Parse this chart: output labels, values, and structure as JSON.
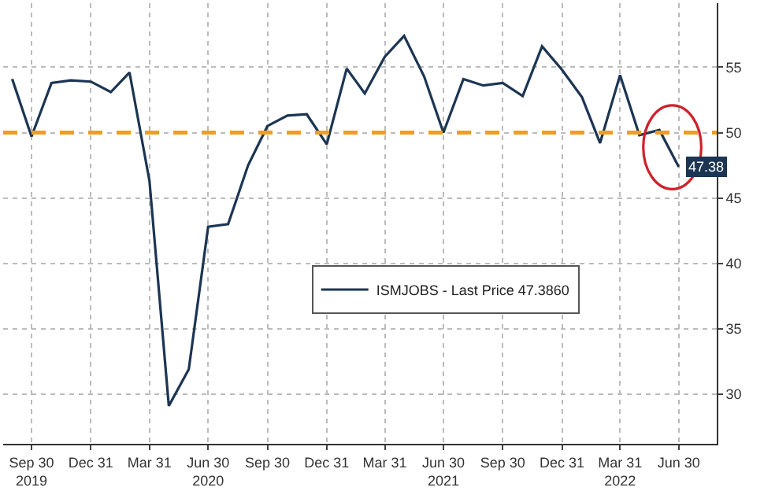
{
  "chart_data": {
    "type": "line",
    "x": [
      "2019-08-31",
      "2019-09-30",
      "2019-10-31",
      "2019-11-30",
      "2019-12-31",
      "2020-01-31",
      "2020-02-29",
      "2020-03-31",
      "2020-04-30",
      "2020-05-31",
      "2020-06-30",
      "2020-07-31",
      "2020-08-31",
      "2020-09-30",
      "2020-10-31",
      "2020-11-30",
      "2020-12-31",
      "2021-01-31",
      "2021-02-28",
      "2021-03-31",
      "2021-04-30",
      "2021-05-31",
      "2021-06-30",
      "2021-07-31",
      "2021-08-31",
      "2021-09-30",
      "2021-10-31",
      "2021-11-30",
      "2021-12-31",
      "2022-01-31",
      "2022-02-28",
      "2022-03-31",
      "2022-04-30",
      "2022-05-31",
      "2022-06-30"
    ],
    "series": [
      {
        "name": "ISMJOBS - Last Price 47.3860",
        "color": "#1c3553",
        "values": [
          54.1,
          49.7,
          53.8,
          54.0,
          53.9,
          53.1,
          54.6,
          46.3,
          29.1,
          31.9,
          42.8,
          43.0,
          47.5,
          50.5,
          51.3,
          51.4,
          49.1,
          54.9,
          53.0,
          55.8,
          57.4,
          54.3,
          50.0,
          54.1,
          53.6,
          53.8,
          52.8,
          56.6,
          54.8,
          52.7,
          49.2,
          54.4,
          49.8,
          50.2,
          47.38
        ],
        "value_labels": [
          null,
          null,
          null,
          null,
          null,
          null,
          null,
          null,
          null,
          null,
          null,
          null,
          null,
          null,
          null,
          null,
          null,
          null,
          null,
          null,
          null,
          null,
          null,
          null,
          null,
          null,
          null,
          null,
          null,
          null,
          null,
          null,
          null,
          null,
          "47.38"
        ]
      }
    ],
    "xlim": [
      "2019-08-17",
      "2022-08-28"
    ],
    "xticks": [
      {
        "value": "2019-09-30",
        "label": "Sep 30\n2019"
      },
      {
        "value": "2019-12-31",
        "label": "Dec 31"
      },
      {
        "value": "2020-03-31",
        "label": "Mar 31"
      },
      {
        "value": "2020-06-30",
        "label": "Jun 30\n2020"
      },
      {
        "value": "2020-09-30",
        "label": "Sep 30"
      },
      {
        "value": "2020-12-31",
        "label": "Dec 31"
      },
      {
        "value": "2021-03-31",
        "label": "Mar 31"
      },
      {
        "value": "2021-06-30",
        "label": "Jun 30\n2021"
      },
      {
        "value": "2021-09-30",
        "label": "Sep 30"
      },
      {
        "value": "2021-12-31",
        "label": "Dec 31"
      },
      {
        "value": "2022-03-31",
        "label": "Mar 31\n2022"
      },
      {
        "value": "2022-06-30",
        "label": "Jun 30"
      }
    ],
    "ylim": [
      26.2,
      59.9
    ],
    "yticks": [
      30,
      35,
      40,
      45,
      50,
      55
    ],
    "ref_lines": [
      {
        "axis": "y",
        "value": 50,
        "color": "#f39c1f",
        "line_style": "dashed"
      }
    ],
    "grid": true,
    "legend": "center",
    "marker": "none",
    "line_style": "solid"
  }
}
